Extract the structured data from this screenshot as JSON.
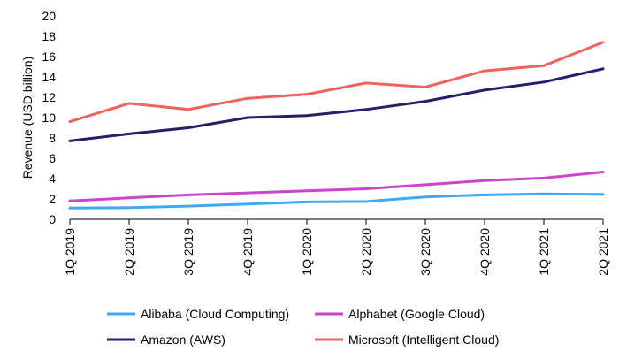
{
  "chart_data": {
    "type": "line",
    "title": "",
    "xlabel": "",
    "ylabel": "Revenue (USD billion)",
    "ylim": [
      0,
      20
    ],
    "yticks": [
      0,
      2,
      4,
      6,
      8,
      10,
      12,
      14,
      16,
      18,
      20
    ],
    "grid": false,
    "legend_position": "bottom",
    "categories": [
      "1Q 2019",
      "2Q 2019",
      "3Q 2019",
      "4Q 2019",
      "1Q 2020",
      "2Q 2020",
      "3Q 2020",
      "4Q 2020",
      "1Q 2021",
      "2Q 2021"
    ],
    "series": [
      {
        "name": "Alibaba (Cloud Computing)",
        "color": "#3fa9f5",
        "values": [
          1.1,
          1.15,
          1.3,
          1.5,
          1.7,
          1.75,
          2.2,
          2.4,
          2.5,
          2.45
        ]
      },
      {
        "name": "Alphabet (Google Cloud)",
        "color": "#cc44cc",
        "values": [
          1.8,
          2.1,
          2.4,
          2.6,
          2.8,
          3.0,
          3.4,
          3.8,
          4.05,
          4.65
        ]
      },
      {
        "name": "Amazon (AWS)",
        "color": "#221f6b",
        "values": [
          7.7,
          8.4,
          9.0,
          10.0,
          10.2,
          10.8,
          11.6,
          12.7,
          13.5,
          14.8
        ]
      },
      {
        "name": "Microsoft (Intelligent Cloud)",
        "color": "#f0625d",
        "values": [
          9.6,
          11.4,
          10.8,
          11.9,
          12.3,
          13.4,
          13.0,
          14.6,
          15.1,
          17.4
        ]
      }
    ]
  }
}
